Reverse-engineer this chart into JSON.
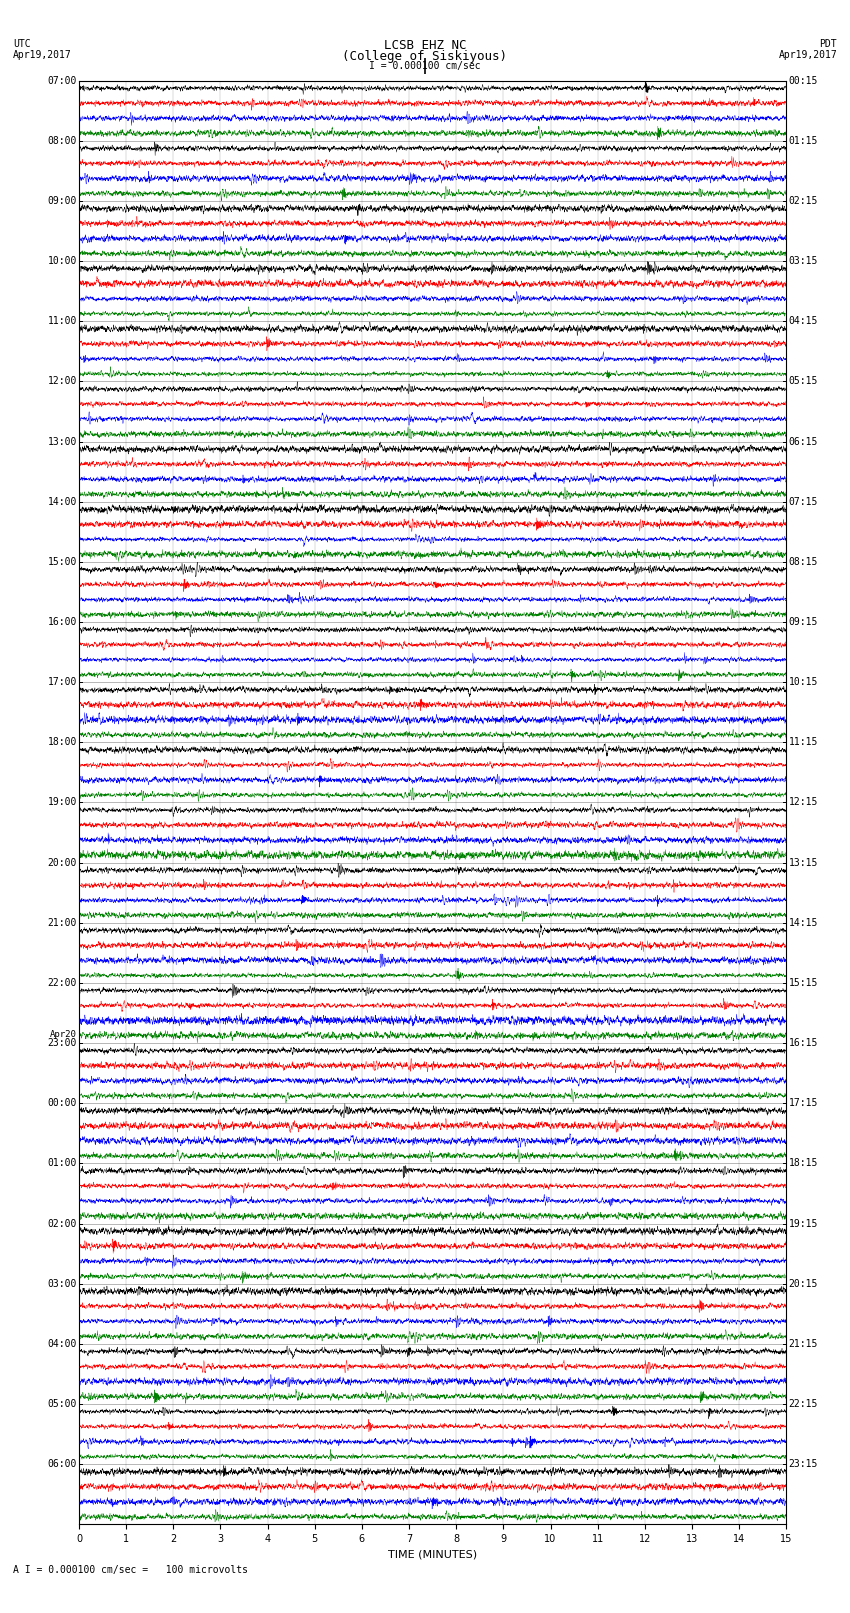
{
  "title_line1": "LCSB EHZ NC",
  "title_line2": "(College of Siskiyous)",
  "scale_label": "I = 0.000100 cm/sec",
  "left_label": "UTC",
  "left_date": "Apr19,2017",
  "right_label": "PDT",
  "right_date": "Apr19,2017",
  "bottom_label": "TIME (MINUTES)",
  "bottom_note": "A I = 0.000100 cm/sec =   100 microvolts",
  "trace_colors": [
    "black",
    "red",
    "blue",
    "green"
  ],
  "n_rows": 96,
  "n_points": 4500,
  "background_color": "white",
  "fig_width": 8.5,
  "fig_height": 16.13,
  "title_fontsize": 9,
  "tick_fontsize": 7,
  "time_xlabel_fontsize": 8,
  "utc_labels": [
    [
      "07:00",
      0
    ],
    [
      "08:00",
      4
    ],
    [
      "09:00",
      8
    ],
    [
      "10:00",
      12
    ],
    [
      "11:00",
      16
    ],
    [
      "12:00",
      20
    ],
    [
      "13:00",
      24
    ],
    [
      "14:00",
      28
    ],
    [
      "15:00",
      32
    ],
    [
      "16:00",
      36
    ],
    [
      "17:00",
      40
    ],
    [
      "18:00",
      44
    ],
    [
      "19:00",
      48
    ],
    [
      "20:00",
      52
    ],
    [
      "21:00",
      56
    ],
    [
      "22:00",
      60
    ],
    [
      "23:00",
      64
    ],
    [
      "00:00",
      68
    ],
    [
      "01:00",
      72
    ],
    [
      "02:00",
      76
    ],
    [
      "03:00",
      80
    ],
    [
      "04:00",
      84
    ],
    [
      "05:00",
      88
    ],
    [
      "06:00",
      92
    ]
  ],
  "pdt_labels": [
    [
      "00:15",
      0
    ],
    [
      "01:15",
      4
    ],
    [
      "02:15",
      8
    ],
    [
      "03:15",
      12
    ],
    [
      "04:15",
      16
    ],
    [
      "05:15",
      20
    ],
    [
      "06:15",
      24
    ],
    [
      "07:15",
      28
    ],
    [
      "08:15",
      32
    ],
    [
      "09:15",
      36
    ],
    [
      "10:15",
      40
    ],
    [
      "11:15",
      44
    ],
    [
      "12:15",
      48
    ],
    [
      "13:15",
      52
    ],
    [
      "14:15",
      56
    ],
    [
      "15:15",
      60
    ],
    [
      "16:15",
      64
    ],
    [
      "17:15",
      68
    ],
    [
      "18:15",
      72
    ],
    [
      "19:15",
      76
    ],
    [
      "20:15",
      80
    ],
    [
      "21:15",
      84
    ],
    [
      "22:15",
      88
    ],
    [
      "23:15",
      92
    ]
  ],
  "apr20_row": 64
}
